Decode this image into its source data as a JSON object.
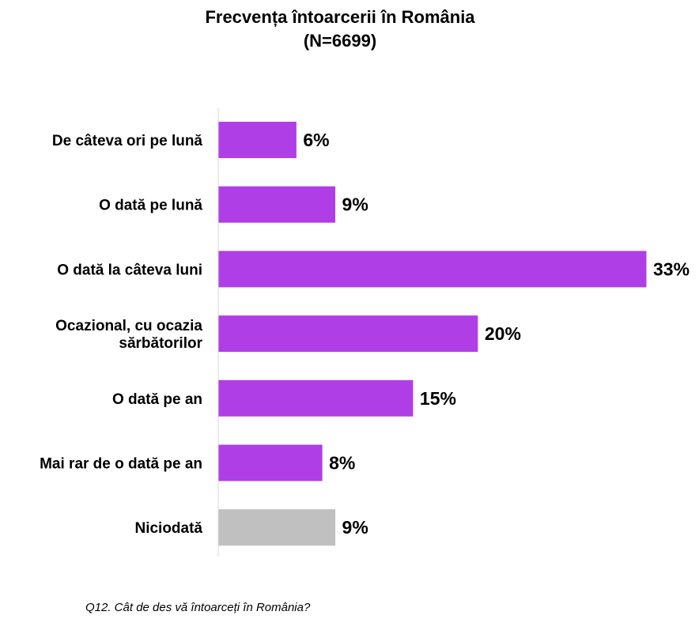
{
  "chart_data": {
    "type": "bar",
    "orientation": "horizontal",
    "title": "Frecvența întoarcerii în România",
    "subtitle": "(N=6699)",
    "categories": [
      [
        "De câteva ori pe lună"
      ],
      [
        "O dată pe lună"
      ],
      [
        "O dată la câteva luni"
      ],
      [
        "Ocazional, cu ocazia",
        "sărbătorilor"
      ],
      [
        "O dată pe an"
      ],
      [
        "Mai rar de o dată pe an"
      ],
      [
        "Niciodată"
      ]
    ],
    "values": [
      6,
      9,
      33,
      20,
      15,
      8,
      9
    ],
    "value_labels": [
      "6%",
      "9%",
      "33%",
      "20%",
      "15%",
      "8%",
      "9%"
    ],
    "unit": "%",
    "colors": [
      "#b03ee6",
      "#b03ee6",
      "#b03ee6",
      "#b03ee6",
      "#b03ee6",
      "#b03ee6",
      "#c0c0c0"
    ],
    "xlim": [
      0,
      33
    ],
    "grid": false,
    "legend": "none"
  },
  "footnote": "Q12. Cât de des vă întoarceți în România?"
}
